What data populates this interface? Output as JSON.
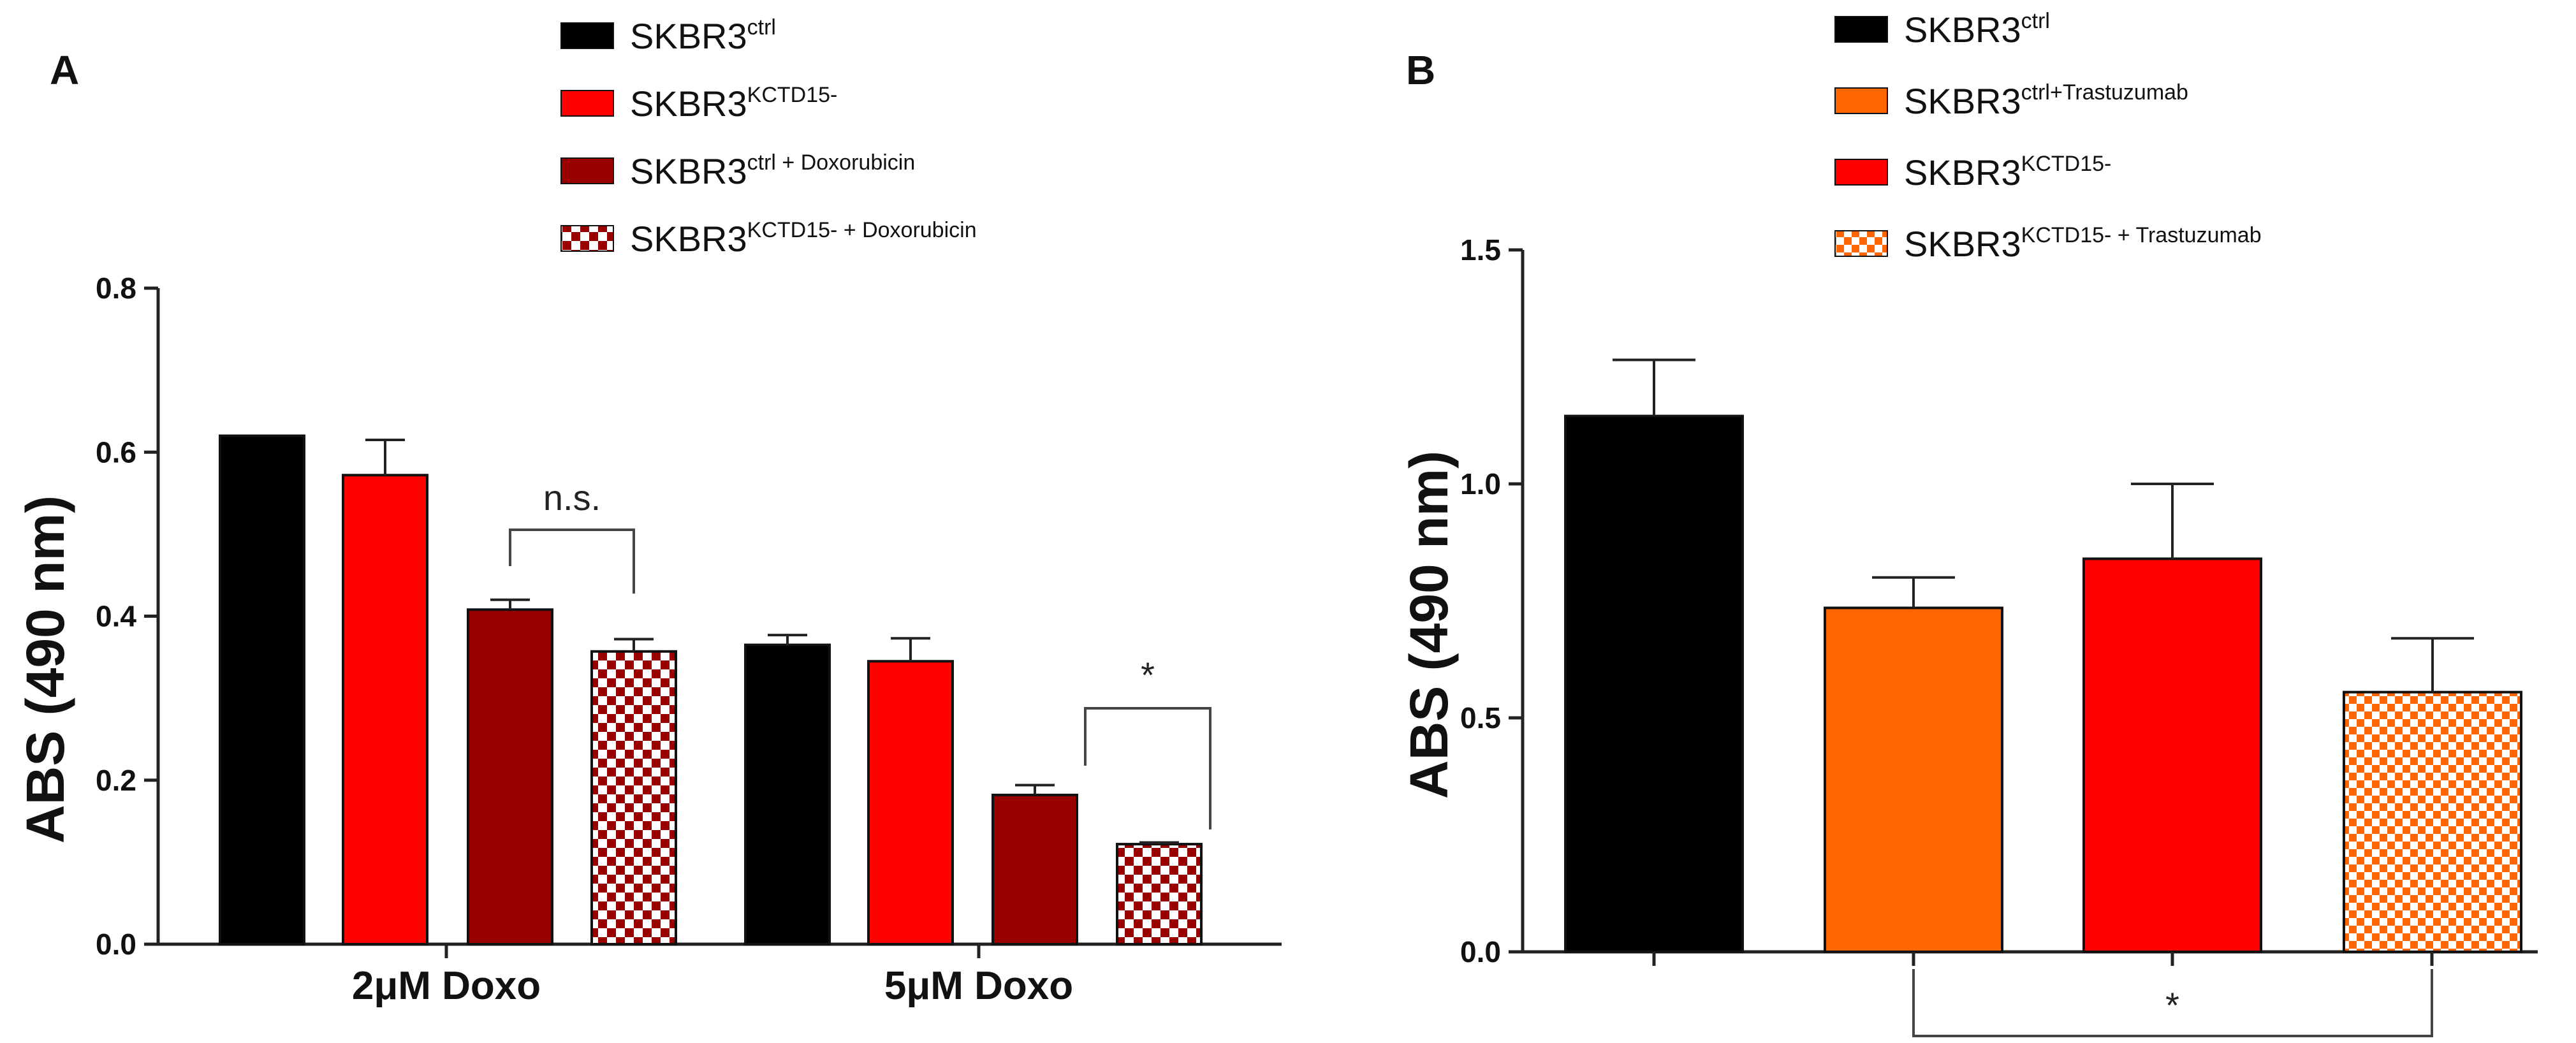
{
  "colors": {
    "black": "#000000",
    "red": "#ff0000",
    "darkred": "#990000",
    "orange": "#ff6600"
  },
  "chart_data": [
    {
      "type": "bar",
      "panel": "A",
      "ylabel": "ABS (490 nm)",
      "ylim": [
        0,
        0.8
      ],
      "yticks": [
        "0.0",
        "0.2",
        "0.4",
        "0.6",
        "0.8"
      ],
      "categories": [
        "2μM Doxo",
        "5μM Doxo"
      ],
      "series": [
        {
          "name": "SKBR3",
          "sup": "ctrl",
          "suffix": "",
          "color": "#000000",
          "pattern": "solid",
          "values": [
            0.62,
            0.365
          ],
          "errors": [
            0.0,
            0.012
          ]
        },
        {
          "name": "SKBR3",
          "sup": "KCTD15-",
          "suffix": "",
          "color": "#ff0000",
          "pattern": "solid",
          "values": [
            0.572,
            0.345
          ],
          "errors": [
            0.043,
            0.028
          ]
        },
        {
          "name": "SKBR3",
          "sup": "ctrl + Doxorubicin",
          "suffix": "",
          "color": "#990000",
          "pattern": "solid",
          "values": [
            0.408,
            0.182
          ],
          "errors": [
            0.012,
            0.012
          ]
        },
        {
          "name": "SKBR3",
          "sup": "KCTD15- + Doxorubicin",
          "suffix": "",
          "color": "#990000",
          "pattern": "checker",
          "values": [
            0.357,
            0.122
          ],
          "errors": [
            0.015,
            0.002
          ]
        }
      ],
      "annotations": [
        {
          "label": "n.s.",
          "category": 0,
          "from_series": 2,
          "to_series": 3
        },
        {
          "label": "*",
          "category": 1,
          "from_series": 2,
          "to_series": 3
        }
      ]
    },
    {
      "type": "bar",
      "panel": "B",
      "ylabel": "ABS (490 nm)",
      "ylim": [
        0,
        1.5
      ],
      "yticks": [
        "0.0",
        "0.5",
        "1.0",
        "1.5"
      ],
      "categories": [
        ""
      ],
      "series": [
        {
          "name": "SKBR3",
          "sup": "ctrl",
          "color": "#000000",
          "pattern": "solid",
          "values": [
            1.145
          ],
          "errors": [
            0.12
          ]
        },
        {
          "name": "SKBR3",
          "sup": "ctrl+Trastuzumab",
          "color": "#ff6600",
          "pattern": "solid",
          "values": [
            0.735
          ],
          "errors": [
            0.065
          ]
        },
        {
          "name": "SKBR3",
          "sup": "KCTD15-",
          "color": "#ff0000",
          "pattern": "solid",
          "values": [
            0.84
          ],
          "errors": [
            0.16
          ]
        },
        {
          "name": "SKBR3",
          "sup": "KCTD15- + Trastuzumab",
          "color": "#ff6600",
          "pattern": "checker",
          "values": [
            0.555
          ],
          "errors": [
            0.115
          ]
        }
      ],
      "annotations": [
        {
          "label": "*",
          "category": 0,
          "from_series": 1,
          "to_series": 3
        }
      ]
    }
  ]
}
